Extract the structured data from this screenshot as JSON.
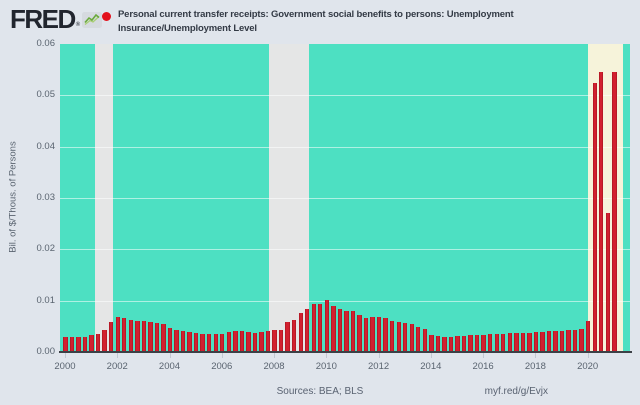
{
  "header": {
    "brand": "FRED",
    "brand_mark": "®",
    "logo_chip_color": "#d6dae0",
    "logo_line_color": "#6aaa3c",
    "legend_marker_color": "#e3101c",
    "title_line1": "Personal current transfer receipts: Government social benefits to persons: Unemployment",
    "title_line2": "Insurance/Unemployment Level"
  },
  "chart_data": {
    "type": "bar",
    "title": "Personal current transfer receipts: Government social benefits to persons: Unemployment Insurance/Unemployment Level",
    "ylabel": "Bil. of $/Thous. of Persons",
    "xlabel": "",
    "ylim": [
      0,
      0.06
    ],
    "xlim": [
      1999.81,
      2021.62
    ],
    "grid": true,
    "plot_bg": "#4de0c2",
    "axis_color": "#3c4046",
    "x_start": 2000.02,
    "x_step": 0.25,
    "y_ticks": {
      "values": [
        0,
        0.01,
        0.02,
        0.03,
        0.04,
        0.05,
        0.06
      ],
      "labels": [
        "0.00",
        "0.01",
        "0.02",
        "0.03",
        "0.04",
        "0.05",
        "0.06"
      ]
    },
    "x_ticks": {
      "values": [
        2000,
        2002,
        2004,
        2006,
        2008,
        2010,
        2012,
        2014,
        2016,
        2018,
        2020
      ],
      "labels": [
        "2000",
        "2002",
        "2004",
        "2006",
        "2008",
        "2010",
        "2012",
        "2014",
        "2016",
        "2018",
        "2020"
      ]
    },
    "shaded_regions": [
      {
        "from": 2001.15,
        "to": 2001.84,
        "color": "#e5e6e6",
        "label": "recession-2001"
      },
      {
        "from": 2007.8,
        "to": 2009.33,
        "color": "#e5e6e6",
        "label": "recession-2008-09"
      },
      {
        "from": 2020.01,
        "to": 2021.35,
        "color": "#f6f3da",
        "label": "recession-2020"
      }
    ],
    "series": [
      {
        "name": "Personal current transfer receipts: Government social benefits to persons: Unemployment Insurance/Unemployment Level",
        "color": "#d2202f",
        "values": [
          0.003,
          0.0029,
          0.0029,
          0.003,
          0.0033,
          0.0036,
          0.0042,
          0.0058,
          0.0068,
          0.0066,
          0.0063,
          0.006,
          0.006,
          0.0058,
          0.0056,
          0.0054,
          0.0046,
          0.0043,
          0.004,
          0.0038,
          0.0037,
          0.0036,
          0.0035,
          0.0035,
          0.0036,
          0.0038,
          0.004,
          0.004,
          0.0038,
          0.0037,
          0.0038,
          0.004,
          0.0042,
          0.0043,
          0.0058,
          0.0062,
          0.0076,
          0.0084,
          0.0093,
          0.0094,
          0.0101,
          0.009,
          0.0084,
          0.008,
          0.008,
          0.0072,
          0.0066,
          0.0068,
          0.0069,
          0.0066,
          0.0061,
          0.0059,
          0.0057,
          0.0054,
          0.0048,
          0.0045,
          0.0033,
          0.0031,
          0.003,
          0.003,
          0.0031,
          0.0032,
          0.0033,
          0.0033,
          0.0034,
          0.0035,
          0.0036,
          0.0036,
          0.0037,
          0.0037,
          0.0037,
          0.0037,
          0.0039,
          0.0039,
          0.0041,
          0.0041,
          0.0041,
          0.0042,
          0.0042,
          0.0044,
          0.006,
          0.0524,
          0.0546,
          0.0271,
          0.0546
        ]
      }
    ]
  },
  "footer": {
    "sources": "Sources: BEA; BLS",
    "link": "myf.red/g/Evjx"
  }
}
